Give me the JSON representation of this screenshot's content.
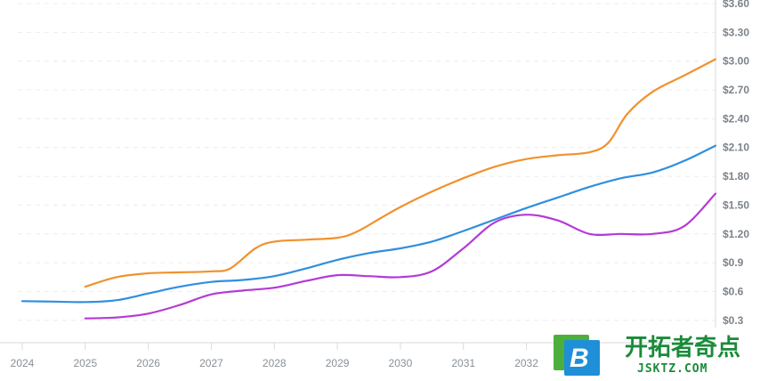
{
  "chart_data": {
    "type": "line",
    "title": "",
    "xlabel": "",
    "ylabel": "",
    "x_ticks": [
      "2024",
      "2025",
      "2026",
      "2027",
      "2028",
      "2029",
      "2030",
      "2031",
      "2032"
    ],
    "y_ticks": [
      "$0.3",
      "$0.6",
      "$0.9",
      "$1.20",
      "$1.50",
      "$1.80",
      "$2.10",
      "$2.40",
      "$2.70",
      "$3.00",
      "$3.30",
      "$3.60"
    ],
    "ylim": [
      0.15,
      3.6
    ],
    "xlim": [
      2024,
      2035
    ],
    "grid": true,
    "y_axis_position": "right",
    "series": [
      {
        "color": "#f0922e",
        "x": [
          2025,
          2025.5,
          2026,
          2026.5,
          2027,
          2027.3,
          2027.7,
          2028,
          2028.5,
          2029,
          2029.3,
          2029.7,
          2030,
          2030.5,
          2031,
          2031.5,
          2032,
          2032.5,
          2033,
          2033.3,
          2033.6,
          2034,
          2034.5,
          2035
        ],
        "y": [
          0.65,
          0.75,
          0.79,
          0.8,
          0.81,
          0.84,
          1.05,
          1.12,
          1.14,
          1.16,
          1.22,
          1.37,
          1.48,
          1.64,
          1.78,
          1.9,
          1.98,
          2.02,
          2.05,
          2.15,
          2.45,
          2.68,
          2.85,
          3.02
        ]
      },
      {
        "color": "#2f8fe0",
        "x": [
          2024,
          2024.5,
          2025,
          2025.5,
          2026,
          2026.5,
          2027,
          2027.5,
          2028,
          2028.5,
          2029,
          2029.5,
          2030,
          2030.5,
          2031,
          2031.5,
          2032,
          2032.5,
          2033,
          2033.5,
          2034,
          2034.5,
          2035
        ],
        "y": [
          0.5,
          0.495,
          0.49,
          0.51,
          0.58,
          0.65,
          0.7,
          0.72,
          0.76,
          0.84,
          0.93,
          1.0,
          1.05,
          1.12,
          1.23,
          1.35,
          1.47,
          1.58,
          1.69,
          1.78,
          1.84,
          1.96,
          2.12
        ]
      },
      {
        "color": "#b33bd6",
        "x": [
          2025,
          2025.5,
          2026,
          2026.5,
          2027,
          2027.5,
          2028,
          2028.5,
          2029,
          2029.5,
          2030,
          2030.5,
          2031,
          2031.5,
          2032,
          2032.5,
          2033,
          2033.5,
          2034,
          2034.5,
          2035
        ],
        "y": [
          0.32,
          0.33,
          0.37,
          0.46,
          0.57,
          0.61,
          0.64,
          0.71,
          0.77,
          0.76,
          0.75,
          0.81,
          1.05,
          1.32,
          1.4,
          1.34,
          1.2,
          1.2,
          1.2,
          1.28,
          1.62
        ]
      }
    ]
  },
  "watermark": {
    "badge_letter": "B",
    "title": "开拓者奇点",
    "subtitle": "JSKTZ.COM"
  }
}
